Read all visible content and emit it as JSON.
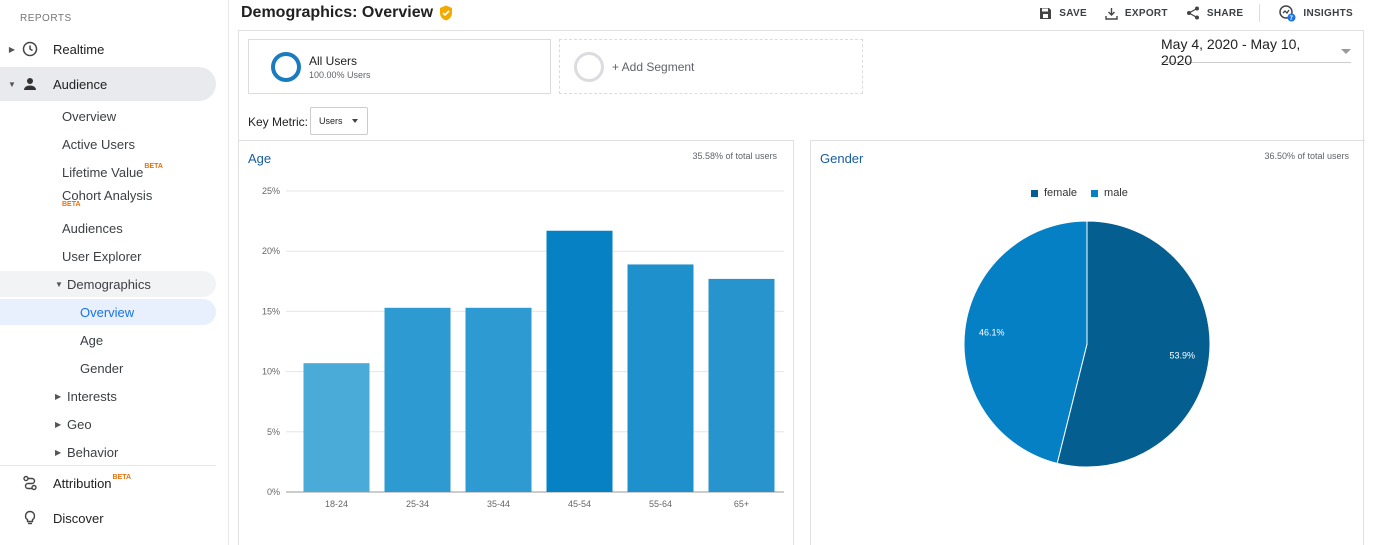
{
  "sidebar": {
    "section_label": "REPORTS",
    "realtime": "Realtime",
    "audience": "Audience",
    "audience_items": {
      "overview": "Overview",
      "active_users": "Active Users",
      "lifetime_value": "Lifetime Value",
      "cohort_analysis": "Cohort Analysis",
      "audiences": "Audiences",
      "user_explorer": "User Explorer",
      "demographics": "Demographics",
      "demo_overview": "Overview",
      "demo_age": "Age",
      "demo_gender": "Gender",
      "interests": "Interests",
      "geo": "Geo",
      "behavior": "Behavior"
    },
    "attribution": "Attribution",
    "discover": "Discover",
    "beta_label": "BETA"
  },
  "header": {
    "title": "Demographics: Overview",
    "save": "SAVE",
    "export": "EXPORT",
    "share": "SHARE",
    "insights": "INSIGHTS",
    "insights_badge": "7"
  },
  "segments": {
    "all_users": "All Users",
    "all_users_pct": "100.00% Users",
    "add_segment": "+ Add Segment"
  },
  "date_range": "May 4, 2020 - May 10, 2020",
  "key_metric": {
    "label": "Key Metric:",
    "value": "Users"
  },
  "age_panel": {
    "title": "Age",
    "pct_of_total": "35.58% of total users"
  },
  "gender_panel": {
    "title": "Gender",
    "pct_of_total": "36.50% of total users"
  },
  "colors": {
    "brand_blue": "#1a73e8",
    "female": "#055e90",
    "male": "#0580c5"
  },
  "chart_data": [
    {
      "type": "bar",
      "title": "Age",
      "categories": [
        "18-24",
        "25-34",
        "35-44",
        "45-54",
        "55-64",
        "65+"
      ],
      "values": [
        10.7,
        15.3,
        15.3,
        21.7,
        18.9,
        17.7
      ],
      "bar_colors": [
        "#4aabd9",
        "#2d9ad1",
        "#2d9ad1",
        "#0581c4",
        "#1e90cb",
        "#2794cd"
      ],
      "yticks": [
        "0%",
        "5%",
        "10%",
        "15%",
        "20%",
        "25%"
      ],
      "ylim": [
        0,
        25
      ],
      "grid": true
    },
    {
      "type": "pie",
      "title": "Gender",
      "labels": [
        "female",
        "male"
      ],
      "values": [
        53.9,
        46.1
      ],
      "value_labels": [
        "53.9%",
        "46.1%"
      ],
      "colors": [
        "#055e90",
        "#0580c5"
      ],
      "legend_position": "top"
    }
  ]
}
